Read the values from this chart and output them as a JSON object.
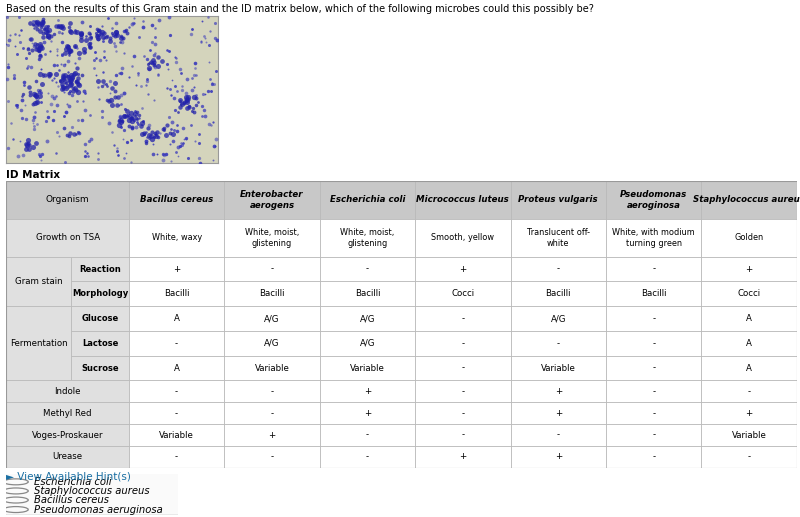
{
  "title": "Based on the results of this Gram stain and the ID matrix below, which of the following microbes could this possibly be?",
  "title_fontsize": 7.0,
  "id_matrix_label": "ID Matrix",
  "organisms": [
    "Bacillus cereus",
    "Enterobacter\naerogens",
    "Escherichia coli",
    "Micrococcus luteus",
    "Proteus vulgaris",
    "Pseudomonas\naeroginosa",
    "Staphylococcus aureus"
  ],
  "growth_tsa": [
    "White, waxy",
    "White, moist,\nglistening",
    "White, moist,\nglistening",
    "Smooth, yellow",
    "Translucent off-\nwhite",
    "White, with modium\nturning green",
    "Golden"
  ],
  "gram_reaction": [
    "+",
    "-",
    "-",
    "+",
    "-",
    "-",
    "+"
  ],
  "gram_morphology": [
    "Bacilli",
    "Bacilli",
    "Bacilli",
    "Cocci",
    "Bacilli",
    "Bacilli",
    "Cocci"
  ],
  "ferm_glucose": [
    "A",
    "A/G",
    "A/G",
    "-",
    "A/G",
    "-",
    "A"
  ],
  "ferm_lactose": [
    "-",
    "A/G",
    "A/G",
    "-",
    "-",
    "-",
    "A"
  ],
  "ferm_sucrose": [
    "A",
    "Variable",
    "Variable",
    "-",
    "Variable",
    "-",
    "A"
  ],
  "indole": [
    "-",
    "-",
    "+",
    "-",
    "+",
    "-",
    "-"
  ],
  "methyl_red": [
    "-",
    "-",
    "+",
    "-",
    "+",
    "-",
    "+"
  ],
  "voges_proskauer": [
    "Variable",
    "+",
    "-",
    "-",
    "-",
    "-",
    "Variable"
  ],
  "urease": [
    "-",
    "-",
    "-",
    "+",
    "+",
    "-",
    "-"
  ],
  "answer_options": [
    "Escherichia coli",
    "Staphylococcus aureus",
    "Bacillus cereus",
    "Pseudomonas aeruginosa"
  ],
  "bg_color": "#ffffff",
  "header_bg": "#c8c8c8",
  "header_bg2": "#e0e0e0",
  "cell_bg_white": "#ffffff",
  "border_color": "#bbbbbb",
  "text_color": "#000000",
  "table_fontsize": 6.2,
  "header_fontsize": 6.5,
  "img_bg": "#d4d4bc",
  "hint_color": "#1a6fa3",
  "answer_border": "#cccccc"
}
